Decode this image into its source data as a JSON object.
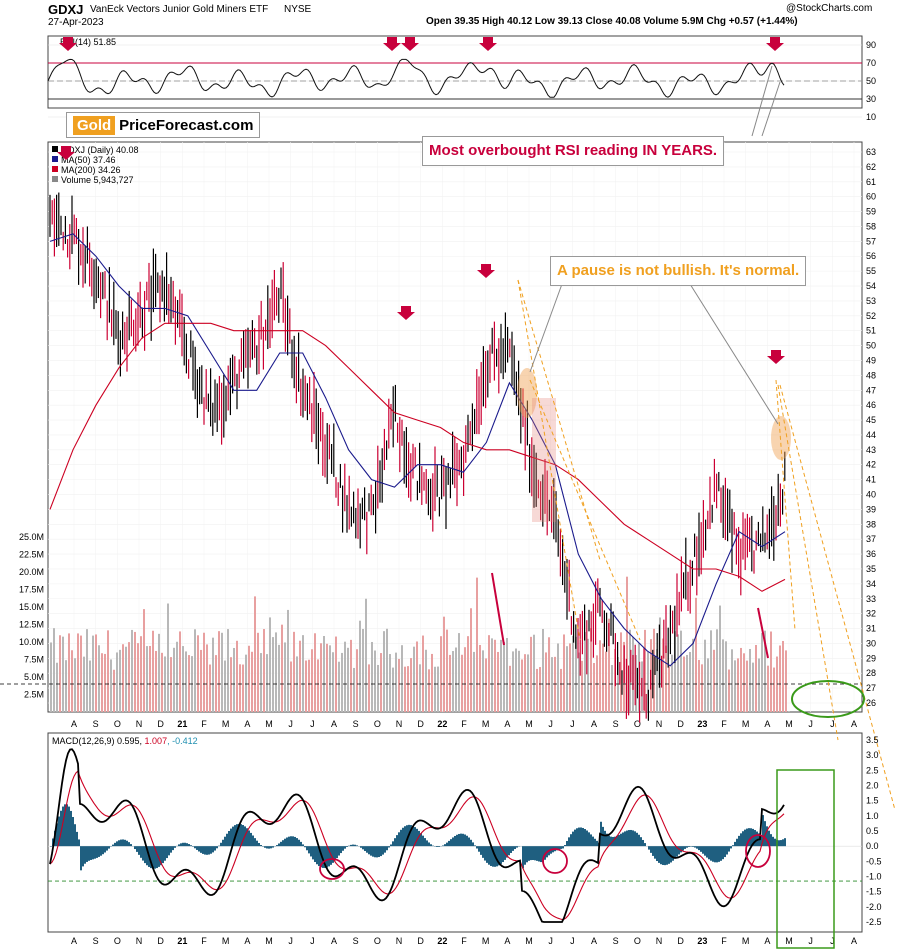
{
  "header": {
    "symbol": "GDXJ",
    "name": "VanEck Vectors Junior Gold Miners ETF",
    "exchange": "NYSE",
    "date": "27-Apr-2023",
    "source": "@StockCharts.com",
    "quote": "Open 39.35  High 40.12  Low 39.13  Close 40.08  Volume 5.9M  Chg +0.57 (+1.44%)"
  },
  "rsi_panel": {
    "label": "RSI(14) 51.85",
    "ticks": [
      90,
      70,
      50,
      30,
      10
    ],
    "overbought": 70,
    "oversold": 30
  },
  "price_panel": {
    "legend": [
      {
        "text": "GDXJ (Daily) 40.08",
        "color": "#000000"
      },
      {
        "text": "MA(50) 37.46",
        "color": "#1a1a8c"
      },
      {
        "text": "MA(200) 34.26",
        "color": "#cc0022"
      },
      {
        "text": "Volume 5,943,727",
        "color": "#888888"
      }
    ],
    "price_ticks": [
      63,
      62,
      61,
      60,
      59,
      58,
      57,
      56,
      55,
      54,
      53,
      52,
      51,
      50,
      49,
      48,
      47,
      46,
      45,
      44,
      43,
      42,
      41,
      40,
      39,
      38,
      37,
      36,
      35,
      34,
      33,
      32,
      31,
      30,
      29,
      28,
      27,
      26
    ],
    "volume_ticks": [
      "25.0M",
      "22.5M",
      "20.0M",
      "17.5M",
      "15.0M",
      "12.5M",
      "10.0M",
      "7.5M",
      "5.0M",
      "2.5M"
    ]
  },
  "macd_panel": {
    "label": "MACD(12,26,9)",
    "macd": "0.595",
    "signal": "1.007",
    "hist": "-0.412",
    "ticks": [
      "3.5",
      "3.0",
      "2.5",
      "2.0",
      "1.5",
      "1.0",
      "0.5",
      "0.0",
      "-0.5",
      "-1.0",
      "-1.5",
      "-2.0",
      "-2.5"
    ]
  },
  "month_labels": [
    "A",
    "S",
    "O",
    "N",
    "D",
    "21",
    "F",
    "M",
    "A",
    "M",
    "J",
    "J",
    "A",
    "S",
    "O",
    "N",
    "D",
    "22",
    "F",
    "M",
    "A",
    "M",
    "J",
    "J",
    "A",
    "S",
    "O",
    "N",
    "D",
    "23",
    "F",
    "M",
    "A",
    "M",
    "J",
    "J",
    "A"
  ],
  "annotations": {
    "logo_gold": "Gold",
    "logo_rest": "PriceForecast.com",
    "rsi_note": "Most overbought RSI reading IN YEARS.",
    "pause_note": "A pause is not bullish. It's normal."
  },
  "colors": {
    "price_up": "#000000",
    "price_down": "#cc0033",
    "ma50": "#1a1a8c",
    "ma200": "#cc0022",
    "arrow": "#c8003c",
    "volume_up": "#b8b8b8",
    "volume_down": "#e8a0a0",
    "macd_hist": "#1f5f80",
    "target_circle": "#3a9a1a",
    "projection": "#f0a020"
  },
  "chart_data": {
    "type": "line",
    "title": "GDXJ VanEck Vectors Junior Gold Miners ETF NYSE",
    "x": [
      "2020-08",
      "2020-09",
      "2020-10",
      "2020-11",
      "2020-12",
      "2021-01",
      "2021-02",
      "2021-03",
      "2021-04",
      "2021-05",
      "2021-06",
      "2021-07",
      "2021-08",
      "2021-09",
      "2021-10",
      "2021-11",
      "2021-12",
      "2022-01",
      "2022-02",
      "2022-03",
      "2022-04",
      "2022-05",
      "2022-06",
      "2022-07",
      "2022-08",
      "2022-09",
      "2022-10",
      "2022-11",
      "2022-12",
      "2023-01",
      "2023-02",
      "2023-03",
      "2023-04"
    ],
    "series": [
      {
        "name": "GDXJ (Daily) 40.08",
        "values": [
          58.5,
          57.5,
          55,
          50.5,
          52.5,
          54,
          49.5,
          45.5,
          47.5,
          50,
          53.5,
          47,
          43.5,
          39,
          38.5,
          45.5,
          41,
          40,
          42.5,
          49,
          49.5,
          42,
          38,
          30,
          32.5,
          28,
          26.5,
          30.5,
          35.5,
          40.5,
          36,
          36.5,
          41
        ]
      },
      {
        "name": "MA(50) 37.46",
        "values": [
          57,
          57.5,
          56,
          54,
          52.5,
          52.5,
          52,
          49.5,
          47,
          47,
          49.5,
          49.5,
          46.5,
          43,
          41,
          40.5,
          42,
          42,
          41.5,
          43.5,
          47.5,
          45,
          42,
          36,
          33,
          31,
          29.5,
          28.5,
          30,
          34,
          37.5,
          36.5,
          37.5
        ]
      },
      {
        "name": "MA(200) 34.26",
        "values": [
          39,
          43,
          46,
          48.5,
          50.5,
          51.5,
          51.5,
          51.5,
          51,
          51,
          51,
          51,
          50,
          48.5,
          47,
          45.5,
          45,
          44.5,
          43.5,
          43,
          43,
          42.5,
          42,
          41,
          39.5,
          38,
          37,
          36,
          35,
          35,
          34.5,
          33.5,
          34.3
        ]
      }
    ],
    "ylim": [
      26,
      63
    ]
  }
}
